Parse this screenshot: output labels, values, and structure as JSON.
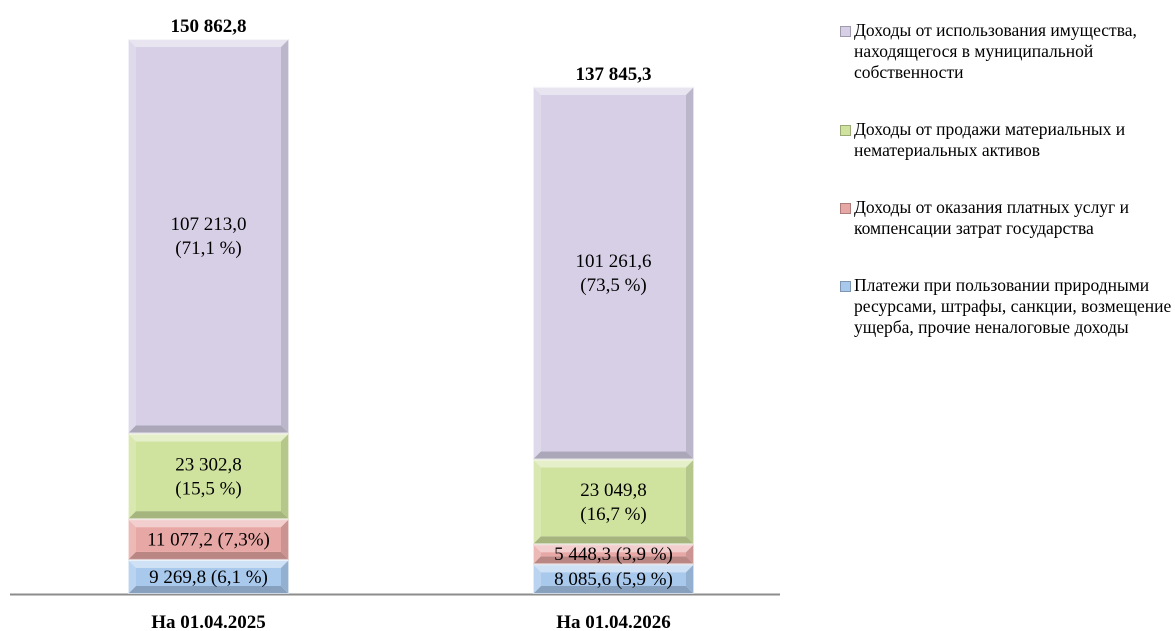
{
  "chart_data": {
    "type": "bar",
    "stacked": true,
    "categories": [
      "На 01.04.2025",
      "На 01.04.2026"
    ],
    "totals": [
      150862.8,
      137845.3
    ],
    "total_labels": [
      "150 862,8",
      "137 845,3"
    ],
    "series": [
      {
        "name": "Платежи при пользовании природными ресурсами, штрафы, санкции, возмещение ущерба, прочие неналоговые доходы",
        "values": [
          9269.8,
          8085.6
        ],
        "labels": [
          "9 269,8 (6,1 %)",
          "8 085,6 (5,9 %)"
        ],
        "color": "#a8c8ec"
      },
      {
        "name": "Доходы от оказания платных услуг и компенсации затрат государства",
        "values": [
          11077.2,
          5448.3
        ],
        "labels": [
          "11 077,2 (7,3%)",
          "5 448,3 (3,9 %)"
        ],
        "color": "#e7a7a5"
      },
      {
        "name": "Доходы от продажи материальных и нематериальных активов",
        "values": [
          23302.8,
          23049.8
        ],
        "labels": [
          "23 302,8\n(15,5 %)",
          "23 049,8\n(16,7 %)"
        ],
        "color": "#cfe29e"
      },
      {
        "name": "Доходы от использования имущества, находящегося в муниципальной собственности",
        "values": [
          107213.0,
          101261.6
        ],
        "labels": [
          "107 213,0\n(71,1 %)",
          "101 261,6\n(73,5 %)"
        ],
        "color": "#d6cfe6"
      }
    ],
    "legend_order": [
      3,
      2,
      1,
      0
    ],
    "legend_position": "right",
    "grid": false
  }
}
